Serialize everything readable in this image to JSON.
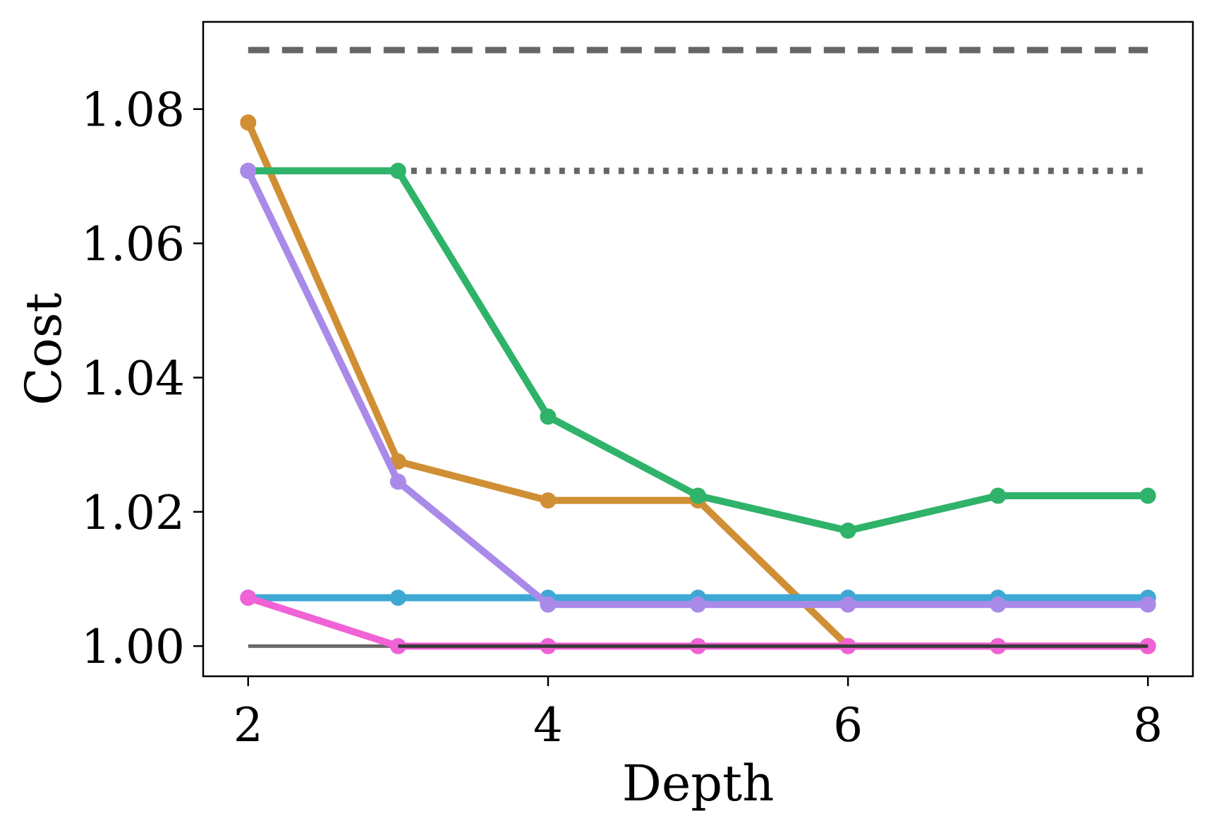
{
  "chart_data": {
    "type": "line",
    "xlabel": "Depth",
    "ylabel": "Cost",
    "xlim": [
      1.7,
      8.3
    ],
    "ylim": [
      0.9955,
      1.093
    ],
    "xticks": [
      2,
      4,
      6,
      8
    ],
    "xtick_labels": [
      "2",
      "4",
      "6",
      "8"
    ],
    "yticks": [
      1.0,
      1.02,
      1.04,
      1.06,
      1.08
    ],
    "ytick_labels": [
      "1.00",
      "1.02",
      "1.04",
      "1.06",
      "1.08"
    ],
    "grid": false,
    "legend": "none",
    "x": [
      2,
      3,
      4,
      5,
      6,
      7,
      8
    ],
    "reference_lines": [
      {
        "style": "dashed",
        "color": "#666666",
        "x": [
          2,
          8
        ],
        "values": [
          1.0888,
          1.0888
        ]
      },
      {
        "style": "dotted",
        "color": "#666666",
        "x": [
          2,
          8
        ],
        "values": [
          1.0708,
          1.0708
        ]
      },
      {
        "style": "solid",
        "color": "#666666",
        "x": [
          2,
          8
        ],
        "values": [
          1.0,
          1.0
        ]
      }
    ],
    "series": [
      {
        "color": "#d08f35",
        "values": [
          1.078,
          1.0275,
          1.0217,
          1.0217,
          1.0,
          1.0,
          1.0
        ]
      },
      {
        "color": "#2fb36a",
        "values": [
          1.0708,
          1.0708,
          1.0342,
          1.0224,
          1.0172,
          1.0224,
          1.0224
        ]
      },
      {
        "color": "#3ea8d4",
        "values": [
          1.0072,
          1.0072,
          1.0072,
          1.0072,
          1.0072,
          1.0072,
          1.0072
        ]
      },
      {
        "color": "#a98ae8",
        "values": [
          1.0708,
          1.0245,
          1.0062,
          1.0062,
          1.0062,
          1.0062,
          1.0062
        ]
      },
      {
        "color": "#f062d6",
        "values": [
          1.0072,
          1.0,
          1.0,
          1.0,
          1.0,
          1.0,
          1.0
        ]
      }
    ],
    "overlay_line": {
      "color": "#3a3a3a",
      "x": [
        3,
        8
      ],
      "values": [
        1.0,
        1.0
      ]
    }
  }
}
